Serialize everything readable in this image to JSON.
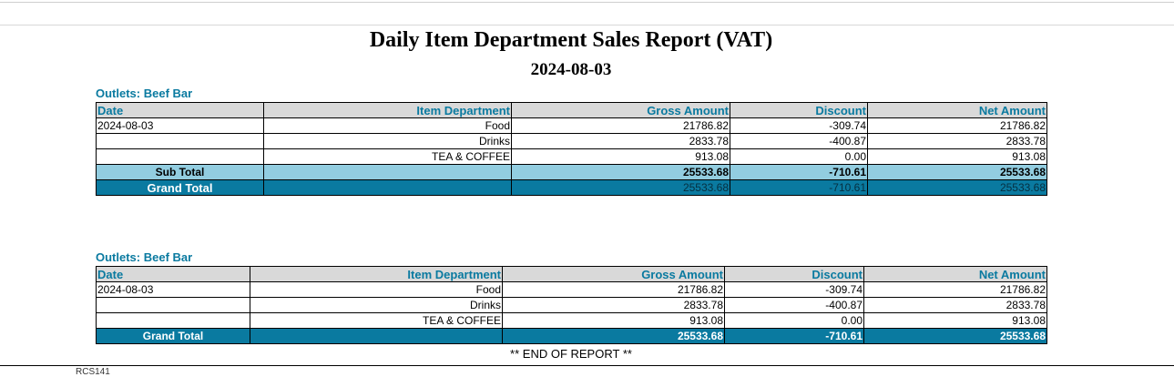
{
  "report": {
    "title": "Daily Item Department Sales Report (VAT)",
    "date": "2024-08-03",
    "end_text": "** END OF REPORT **",
    "footer_code": "RCS141"
  },
  "columns": [
    "Date",
    "Item Department",
    "Gross Amount",
    "Discount",
    "Net Amount"
  ],
  "section1": {
    "outlet": "Outlets: Beef Bar",
    "rows": [
      [
        "2024-08-03",
        "Food",
        "21786.82",
        "-309.74",
        "21786.82"
      ],
      [
        "",
        "Drinks",
        "2833.78",
        "-400.87",
        "2833.78"
      ],
      [
        "",
        "TEA & COFFEE",
        "913.08",
        "0.00",
        "913.08"
      ]
    ],
    "subtotal": {
      "label": "Sub Total",
      "gross": "25533.68",
      "discount": "-710.61",
      "net": "25533.68"
    },
    "grand": {
      "label": "Grand Total",
      "gross": "25533.68",
      "discount": "-710.61",
      "net": "25533.68"
    }
  },
  "section2": {
    "outlet": "Outlets: Beef Bar",
    "rows": [
      [
        "2024-08-03",
        "Food",
        "21786.82",
        "-309.74",
        "21786.82"
      ],
      [
        "",
        "Drinks",
        "2833.78",
        "-400.87",
        "2833.78"
      ],
      [
        "",
        "TEA & COFFEE",
        "913.08",
        "0.00",
        "913.08"
      ]
    ],
    "grand": {
      "label": "Grand Total",
      "gross": "25533.68",
      "discount": "-710.61",
      "net": "25533.68"
    }
  },
  "colors": {
    "accent": "#0a7aa0",
    "subtotal_bg": "#92cde0",
    "header_bg": "#d9d9d9"
  }
}
